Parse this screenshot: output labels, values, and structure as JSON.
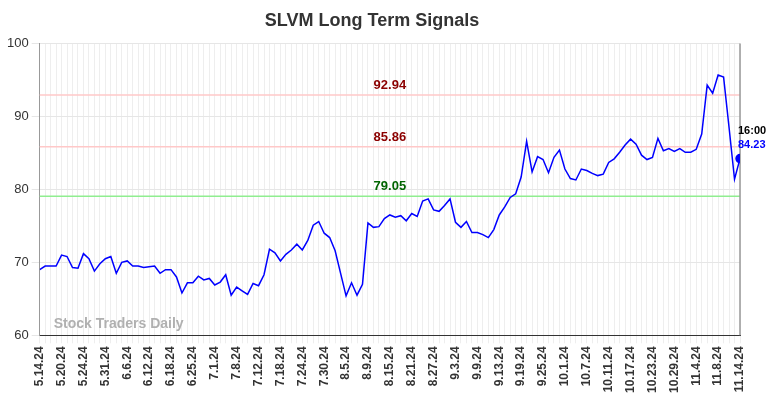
{
  "chart_data": {
    "type": "line",
    "title": "SLVM Long Term Signals",
    "watermark": "Stock Traders Daily",
    "color": "#0000ff",
    "grid": true,
    "legend": false,
    "ylim": [
      60,
      100
    ],
    "yticks": [
      60,
      70,
      80,
      90,
      100
    ],
    "categories": [
      "5.14.24",
      null,
      null,
      null,
      "5.20.24",
      null,
      null,
      null,
      "5.24.24",
      null,
      null,
      null,
      "5.31.24",
      null,
      null,
      null,
      "6.6.24",
      null,
      null,
      null,
      "6.12.24",
      null,
      null,
      null,
      "6.18.24",
      null,
      null,
      null,
      "6.25.24",
      null,
      null,
      null,
      "7.1.24",
      null,
      null,
      null,
      "7.8.24",
      null,
      null,
      null,
      "7.12.24",
      null,
      null,
      null,
      "7.18.24",
      null,
      null,
      null,
      "7.24.24",
      null,
      null,
      null,
      "7.30.24",
      null,
      null,
      null,
      "8.5.24",
      null,
      null,
      null,
      "8.9.24",
      null,
      null,
      null,
      "8.15.24",
      null,
      null,
      null,
      "8.21.24",
      null,
      null,
      null,
      "8.27.24",
      null,
      null,
      null,
      "9.3.24",
      null,
      null,
      null,
      "9.9.24",
      null,
      null,
      null,
      "9.13.24",
      null,
      null,
      null,
      "9.19.24",
      null,
      null,
      null,
      "9.25.24",
      null,
      null,
      null,
      "10.1.24",
      null,
      null,
      null,
      "10.7.24",
      null,
      null,
      null,
      "10.11.24",
      null,
      null,
      null,
      "10.17.24",
      null,
      null,
      null,
      "10.23.24",
      null,
      null,
      null,
      "10.29.24",
      null,
      null,
      null,
      "11.4.24",
      null,
      null,
      null,
      "11.8.24",
      null,
      null,
      null,
      "11.14.24"
    ],
    "values": [
      69,
      69.5,
      69.5,
      69.5,
      71,
      70.8,
      69.3,
      69.2,
      71.2,
      70.5,
      68.8,
      69.8,
      70.5,
      70.8,
      68.5,
      70,
      70.2,
      69.5,
      69.5,
      69.3,
      69.4,
      69.5,
      68.5,
      69,
      69,
      68,
      65.8,
      67.2,
      67.2,
      68.1,
      67.6,
      67.8,
      66.9,
      67.3,
      68.3,
      65.5,
      66.6,
      66.1,
      65.6,
      67.1,
      66.8,
      68.3,
      71.8,
      71.3,
      70.2,
      71.1,
      71.7,
      72.5,
      71.7,
      73,
      75.1,
      75.6,
      74,
      73.4,
      71.6,
      68.5,
      65.4,
      67.2,
      65.5,
      67,
      75.4,
      74.8,
      74.9,
      76,
      76.5,
      76.2,
      76.4,
      75.7,
      76.7,
      76.3,
      78.4,
      78.7,
      77.2,
      77,
      77.8,
      78.7,
      75.5,
      74.8,
      75.6,
      74.1,
      74.1,
      73.8,
      73.4,
      74.5,
      76.5,
      77.6,
      78.9,
      79.4,
      81.7,
      86.6,
      82.4,
      84.5,
      84.1,
      82.3,
      84.4,
      85.4,
      82.8,
      81.5,
      81.3,
      82.8,
      82.6,
      82.2,
      81.9,
      82.1,
      83.7,
      84.2,
      85.1,
      86.1,
      86.9,
      86.2,
      84.7,
      84.1,
      84.4,
      87,
      85.3,
      85.6,
      85.2,
      85.6,
      85.1,
      85.1,
      85.5,
      87.6,
      94.3,
      93.2,
      95.7,
      95.4,
      88.5,
      81.4,
      84.23
    ],
    "annotations": [
      {
        "type": "hline",
        "y": 92.94,
        "label": "92.94",
        "color": "#8b0000",
        "line_color": "#ffc8c8"
      },
      {
        "type": "hline",
        "y": 85.86,
        "label": "85.86",
        "color": "#8b0000",
        "line_color": "#ffc8c8"
      },
      {
        "type": "hline",
        "y": 79.05,
        "label": "79.05",
        "color": "#006400",
        "line_color": "#90ee90"
      },
      {
        "type": "last_point",
        "time": "16:00",
        "value_label": "84.23",
        "color": "#0000ff"
      }
    ]
  }
}
